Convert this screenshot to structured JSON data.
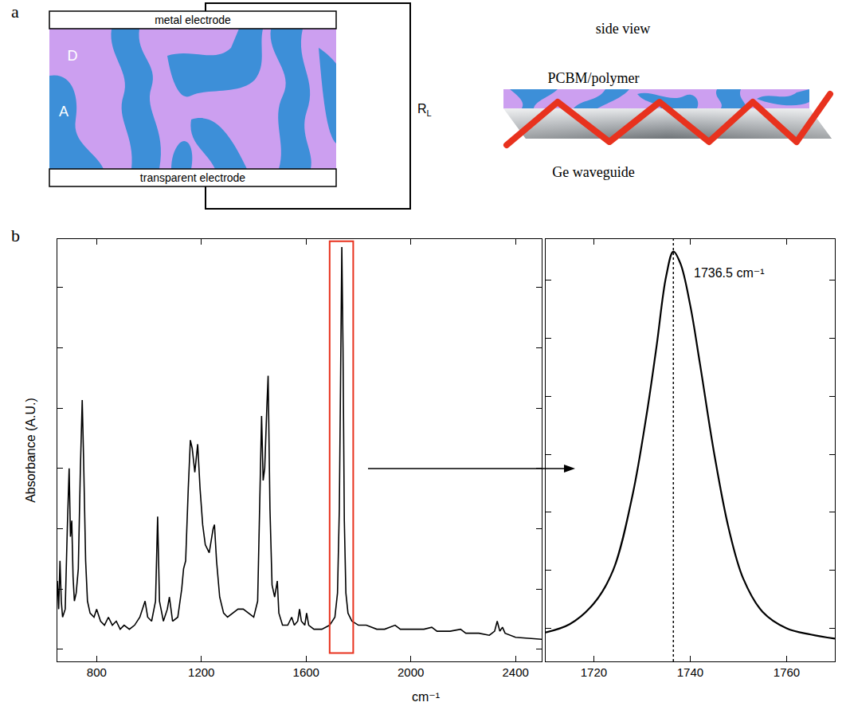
{
  "diagram": {
    "panel_letter": "a",
    "device": {
      "top_electrode": "metal electrode",
      "bottom_electrode": "transparent electrode",
      "donor": "D",
      "acceptor": "A",
      "load": {
        "symbol": "R",
        "subscript": "L"
      }
    },
    "side_view": {
      "title": "side view",
      "film": "PCBM/polymer",
      "substrate": "Ge waveguide"
    }
  },
  "chart_data": [
    {
      "type": "line",
      "panel_letter": "b",
      "y_label": "Absorbance (A.U.)",
      "x_label": "cm⁻¹",
      "color": "#000000",
      "x": [
        650,
        655,
        660,
        665,
        670,
        680,
        688,
        695,
        700,
        705,
        710,
        715,
        722,
        730,
        738,
        745,
        750,
        758,
        765,
        775,
        790,
        800,
        815,
        830,
        845,
        860,
        875,
        890,
        905,
        925,
        945,
        965,
        985,
        995,
        1010,
        1025,
        1033,
        1040,
        1055,
        1070,
        1078,
        1090,
        1110,
        1125,
        1132,
        1140,
        1150,
        1158,
        1165,
        1175,
        1186,
        1195,
        1205,
        1215,
        1230,
        1245,
        1250,
        1258,
        1270,
        1285,
        1300,
        1320,
        1340,
        1360,
        1380,
        1400,
        1415,
        1425,
        1430,
        1436,
        1442,
        1450,
        1455,
        1462,
        1470,
        1480,
        1490,
        1496,
        1510,
        1530,
        1545,
        1555,
        1568,
        1575,
        1582,
        1595,
        1602,
        1610,
        1630,
        1660,
        1690,
        1710,
        1720,
        1727,
        1732,
        1736.5,
        1741,
        1746,
        1752,
        1760,
        1775,
        1800,
        1830,
        1870,
        1900,
        1940,
        1960,
        2000,
        2050,
        2080,
        2100,
        2150,
        2190,
        2210,
        2260,
        2300,
        2320,
        2330,
        2340,
        2350,
        2360,
        2400,
        2450,
        2500
      ],
      "values": [
        0.17,
        0.1,
        0.22,
        0.12,
        0.08,
        0.1,
        0.3,
        0.45,
        0.28,
        0.32,
        0.18,
        0.12,
        0.14,
        0.2,
        0.45,
        0.62,
        0.48,
        0.22,
        0.12,
        0.09,
        0.08,
        0.1,
        0.07,
        0.06,
        0.08,
        0.06,
        0.07,
        0.05,
        0.06,
        0.05,
        0.06,
        0.08,
        0.12,
        0.08,
        0.07,
        0.12,
        0.33,
        0.12,
        0.07,
        0.1,
        0.13,
        0.07,
        0.08,
        0.15,
        0.2,
        0.22,
        0.4,
        0.52,
        0.5,
        0.44,
        0.51,
        0.4,
        0.31,
        0.26,
        0.24,
        0.3,
        0.31,
        0.22,
        0.13,
        0.09,
        0.08,
        0.09,
        0.1,
        0.1,
        0.09,
        0.08,
        0.12,
        0.4,
        0.58,
        0.42,
        0.45,
        0.6,
        0.68,
        0.35,
        0.16,
        0.13,
        0.17,
        0.09,
        0.06,
        0.06,
        0.08,
        0.06,
        0.07,
        0.1,
        0.07,
        0.06,
        0.09,
        0.06,
        0.05,
        0.05,
        0.06,
        0.08,
        0.14,
        0.35,
        0.75,
        1.0,
        0.75,
        0.32,
        0.14,
        0.09,
        0.07,
        0.06,
        0.06,
        0.05,
        0.05,
        0.06,
        0.05,
        0.05,
        0.05,
        0.055,
        0.045,
        0.045,
        0.05,
        0.04,
        0.04,
        0.035,
        0.045,
        0.07,
        0.045,
        0.055,
        0.04,
        0.03,
        0.028,
        0.025
      ],
      "xlim": [
        650,
        2500
      ],
      "xticks": [
        800,
        1200,
        1600,
        2000,
        2400
      ],
      "ylim": [
        -0.03,
        1.02
      ],
      "yticks": [
        0,
        0.15,
        0.3,
        0.45,
        0.6,
        0.75,
        0.9
      ],
      "tick_labels": "x",
      "grid": false,
      "highlight": [
        1690,
        1780
      ]
    },
    {
      "type": "line",
      "color": "#000000",
      "x": [
        1710,
        1715,
        1720,
        1724,
        1728,
        1731,
        1733,
        1735,
        1736.5,
        1738,
        1740,
        1742,
        1745,
        1748,
        1751,
        1755,
        1760,
        1765,
        1770
      ],
      "values": [
        0.07,
        0.09,
        0.14,
        0.22,
        0.4,
        0.6,
        0.76,
        0.93,
        0.99,
        0.96,
        0.86,
        0.72,
        0.5,
        0.32,
        0.2,
        0.12,
        0.08,
        0.065,
        0.055
      ],
      "xlim": [
        1710,
        1770
      ],
      "xticks": [
        1720,
        1740,
        1760
      ],
      "ylim": [
        0,
        1.02
      ],
      "yticks": [
        0.08,
        0.22,
        0.36,
        0.5,
        0.64,
        0.78,
        0.92
      ],
      "tick_labels": "x",
      "grid": false,
      "vline": 1736.5,
      "annotations": [
        {
          "x": 1736.5,
          "text": "1736.5 cm⁻¹"
        }
      ]
    }
  ]
}
